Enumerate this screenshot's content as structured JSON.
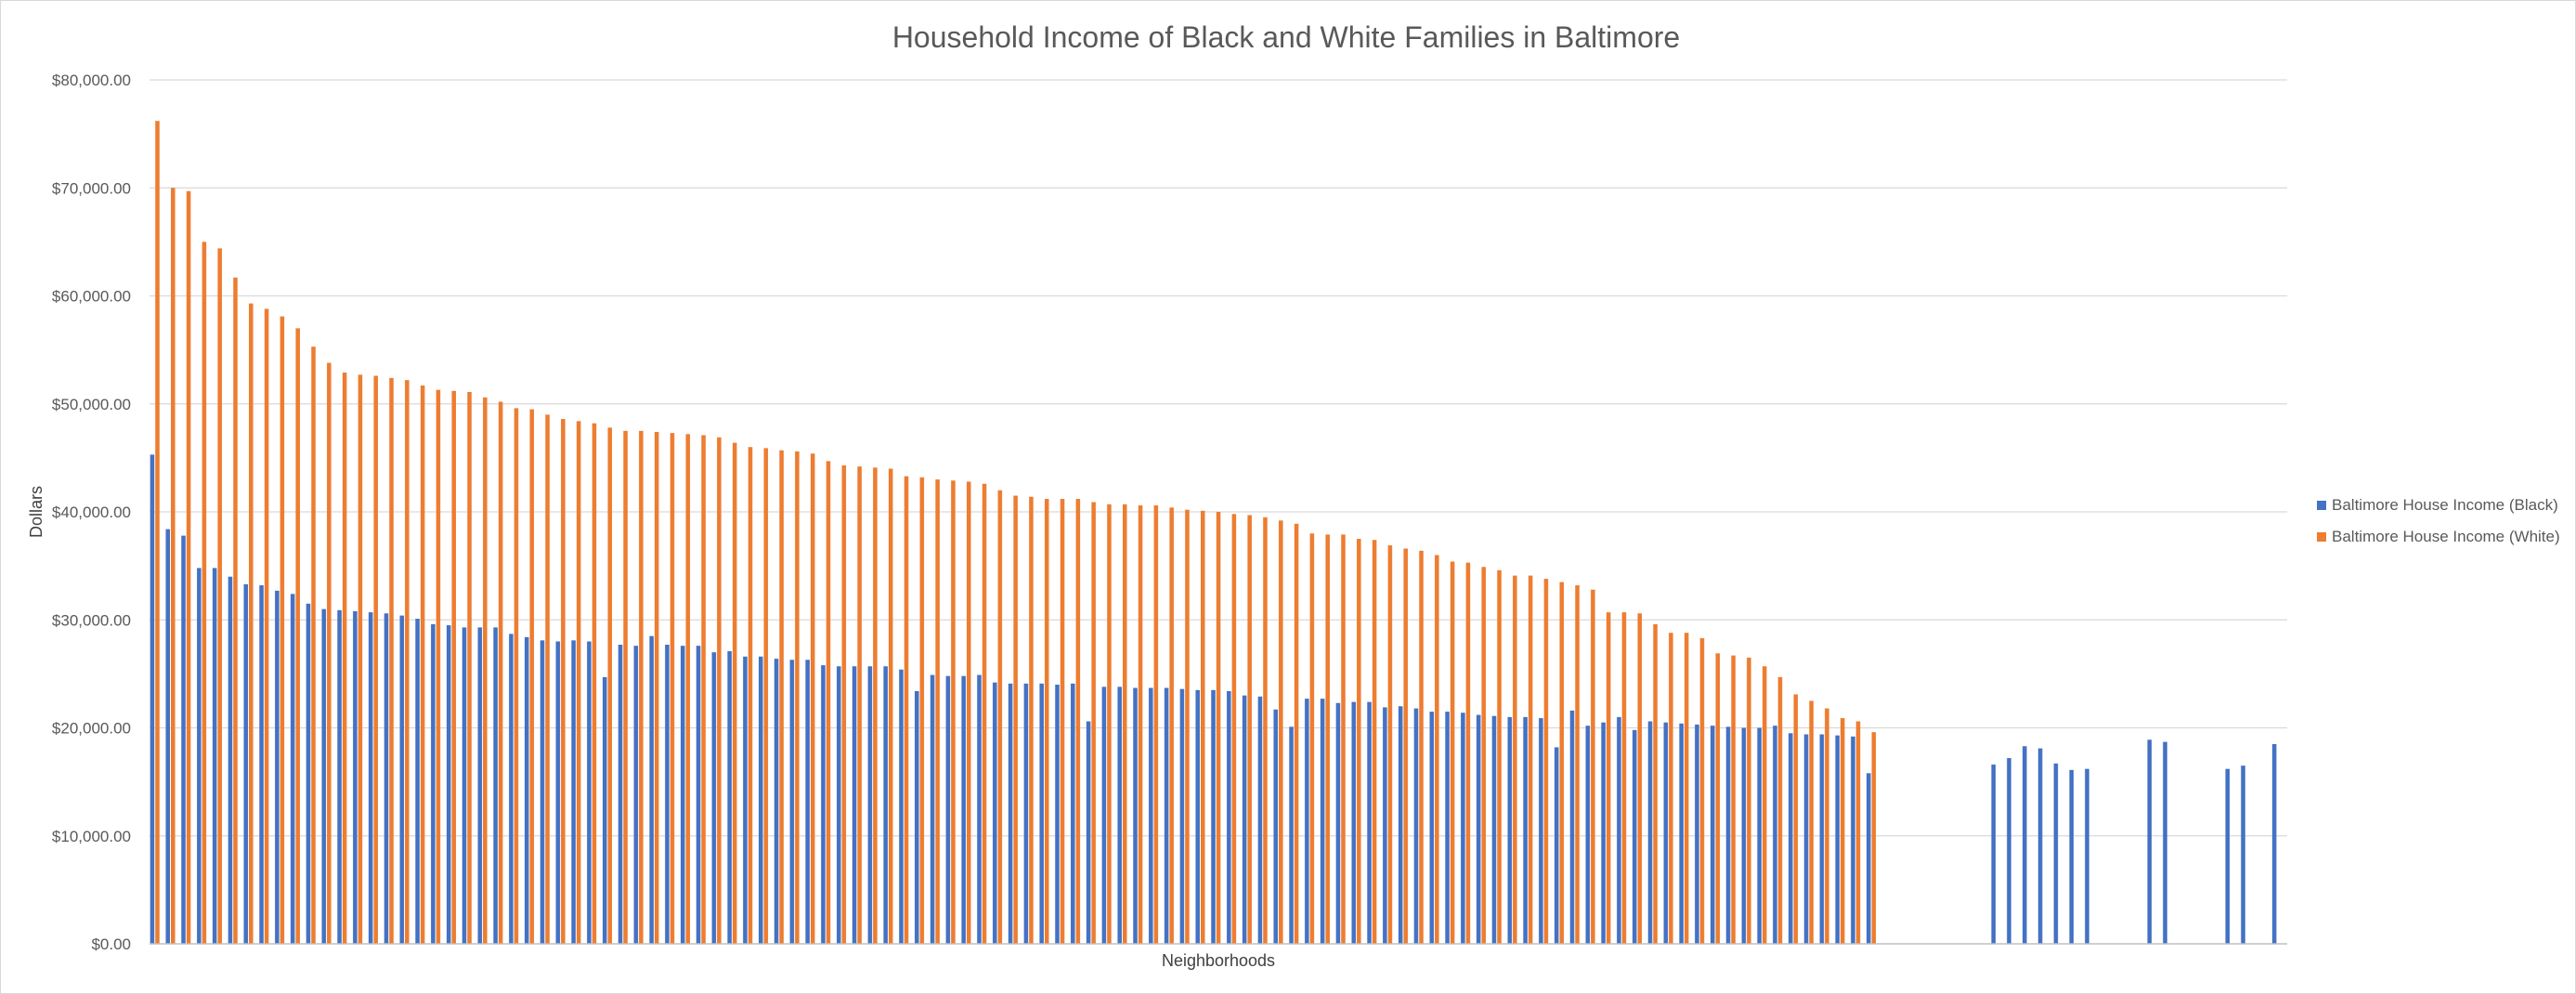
{
  "chart_data": {
    "type": "bar",
    "title": "Household Income of Black and White Families in Baltimore",
    "xlabel": "Neighborhoods",
    "ylabel": "Dollars",
    "ylim": [
      0,
      80000
    ],
    "y_ticks": [
      {
        "value": 0,
        "label": "$0.00"
      },
      {
        "value": 10000,
        "label": "$10,000.00"
      },
      {
        "value": 20000,
        "label": "$20,000.00"
      },
      {
        "value": 30000,
        "label": "$30,000.00"
      },
      {
        "value": 40000,
        "label": "$40,000.00"
      },
      {
        "value": 50000,
        "label": "$50,000.00"
      },
      {
        "value": 60000,
        "label": "$60,000.00"
      },
      {
        "value": 70000,
        "label": "$70,000.00"
      },
      {
        "value": 80000,
        "label": "$80,000.00"
      }
    ],
    "grid": true,
    "legend_position": "right",
    "series": [
      {
        "name": "Baltimore House Income (Black)",
        "color": "#4472c4",
        "values": [
          45300,
          38400,
          37800,
          34800,
          34800,
          34000,
          33300,
          33200,
          32700,
          32400,
          31500,
          31000,
          30900,
          30800,
          30700,
          30600,
          30400,
          30100,
          29600,
          29500,
          29300,
          29300,
          29300,
          28700,
          28400,
          28100,
          28000,
          28100,
          28000,
          24700,
          27700,
          27600,
          28500,
          27700,
          27600,
          27600,
          27000,
          27100,
          26600,
          26600,
          26400,
          26300,
          26300,
          25800,
          25700,
          25700,
          25700,
          25700,
          25400,
          23400,
          24900,
          24800,
          24800,
          24900,
          24200,
          24100,
          24100,
          24100,
          24000,
          24100,
          20600,
          23800,
          23800,
          23700,
          23700,
          23700,
          23600,
          23500,
          23500,
          23400,
          23000,
          22900,
          21700,
          20100,
          22700,
          22700,
          22300,
          22400,
          22400,
          21900,
          22000,
          21800,
          21500,
          21500,
          21400,
          21200,
          21100,
          21000,
          21000,
          20900,
          18200,
          21600,
          20200,
          20500,
          21000,
          19800,
          20600,
          20500,
          20400,
          20300,
          20200,
          20100,
          20000,
          20000,
          20200,
          19500,
          19400,
          19400,
          19300,
          19200,
          15800,
          null,
          null,
          null,
          null,
          null,
          null,
          null,
          16600,
          17200,
          18300,
          18100,
          16700,
          16100,
          16200,
          null,
          null,
          null,
          18900,
          18700,
          null,
          null,
          null,
          16200,
          16500,
          null,
          18500
        ]
      },
      {
        "name": "Baltimore House Income (White)",
        "color": "#ed7d31",
        "values": [
          76200,
          70000,
          69700,
          65000,
          64400,
          61700,
          59300,
          58800,
          58100,
          57000,
          55300,
          53800,
          52900,
          52700,
          52600,
          52400,
          52200,
          51700,
          51300,
          51200,
          51100,
          50600,
          50200,
          49600,
          49500,
          49000,
          48600,
          48400,
          48200,
          47800,
          47500,
          47500,
          47400,
          47300,
          47200,
          47100,
          46900,
          46400,
          46000,
          45900,
          45700,
          45600,
          45400,
          44700,
          44300,
          44200,
          44100,
          44000,
          43300,
          43200,
          43000,
          42900,
          42800,
          42600,
          42000,
          41500,
          41400,
          41200,
          41200,
          41200,
          40900,
          40700,
          40700,
          40600,
          40600,
          40400,
          40200,
          40100,
          40000,
          39800,
          39700,
          39500,
          39200,
          38900,
          38000,
          37900,
          37900,
          37500,
          37400,
          36900,
          36600,
          36400,
          36000,
          35400,
          35300,
          34900,
          34600,
          34100,
          34100,
          33800,
          33500,
          33200,
          32800,
          30700,
          30700,
          30600,
          29600,
          28800,
          28800,
          28300,
          26900,
          26700,
          26500,
          25700,
          24700,
          23100,
          22500,
          21800,
          20900,
          20600,
          19600,
          null,
          null,
          null,
          null,
          null,
          null,
          null,
          null,
          null,
          null,
          null,
          null,
          null,
          null,
          null,
          null,
          null,
          null,
          null,
          null,
          null,
          null,
          null,
          null,
          null
        ]
      }
    ]
  }
}
